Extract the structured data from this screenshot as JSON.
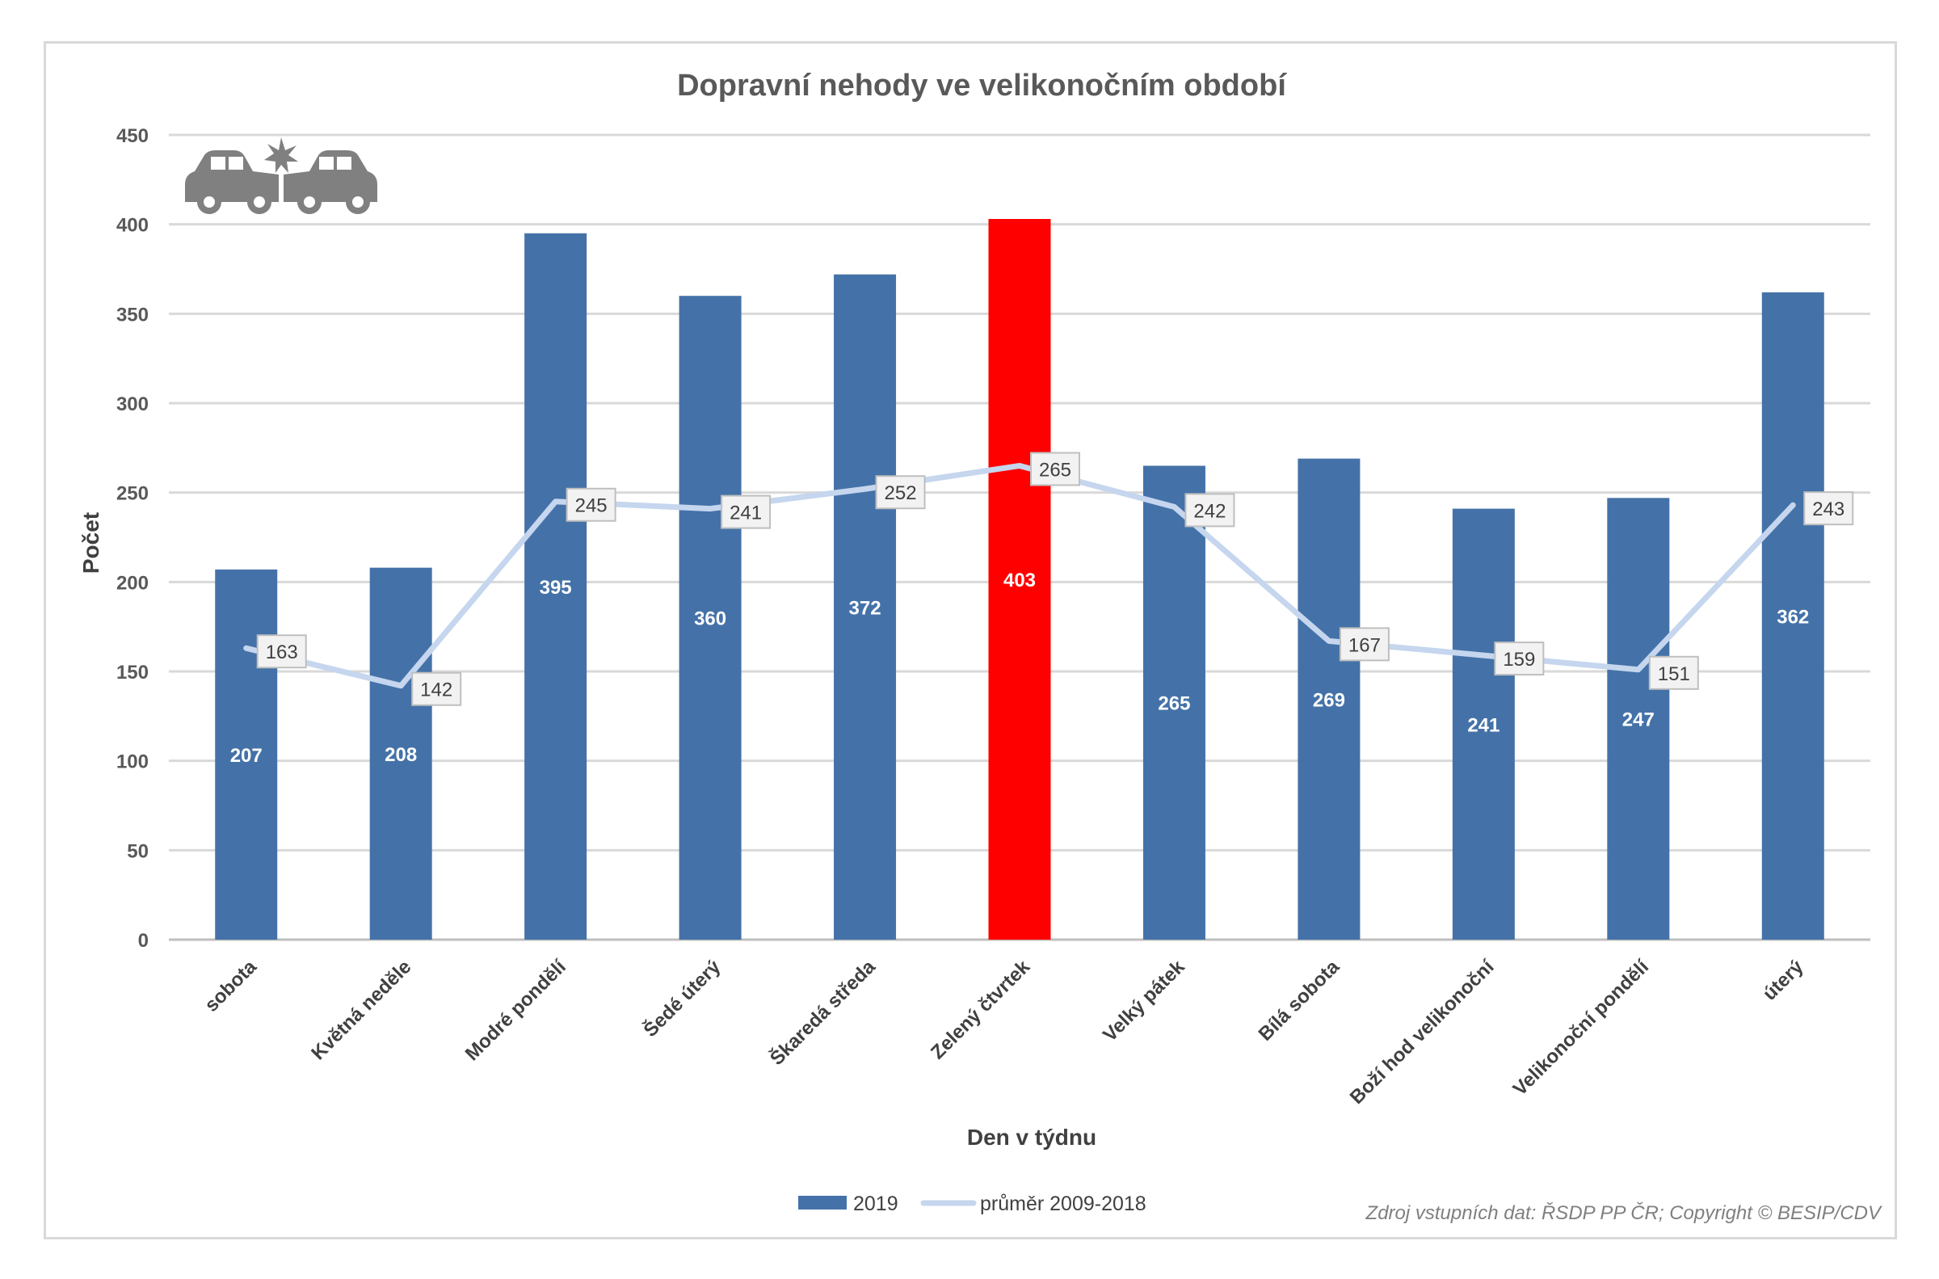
{
  "chart_data": {
    "type": "bar",
    "title": "Dopravní nehody ve velikonočním období",
    "xlabel": "Den v týdnu",
    "ylabel": "Počet",
    "ylim": [
      0,
      450
    ],
    "yticks": [
      0,
      50,
      100,
      150,
      200,
      250,
      300,
      350,
      400,
      450
    ],
    "grid": true,
    "legend_position": "bottom",
    "categories": [
      "sobota",
      "Květná neděle",
      "Modré pondělí",
      "Šedé úterý",
      "Škaredá středa",
      "Zelený čtvrtek",
      "Velký pátek",
      "Bílá sobota",
      "Boží hod velikonoční",
      "Velikonoční pondělí",
      "úterý"
    ],
    "series": [
      {
        "name": "2019",
        "type": "bar",
        "color": "#4472a8",
        "highlight_color": "#ff0000",
        "highlight_category": "Zelený čtvrtek",
        "values": [
          207,
          208,
          395,
          360,
          372,
          403,
          265,
          269,
          241,
          247,
          362
        ]
      },
      {
        "name": "průměr 2009-2018",
        "type": "line",
        "color": "#c5d6ee",
        "values": [
          163,
          142,
          245,
          241,
          252,
          265,
          242,
          167,
          159,
          151,
          243
        ]
      }
    ],
    "source": "Zdroj vstupních dat: ŘSDP PP ČR; Copyright © BESIP/CDV",
    "icon": "car-crash-icon"
  }
}
